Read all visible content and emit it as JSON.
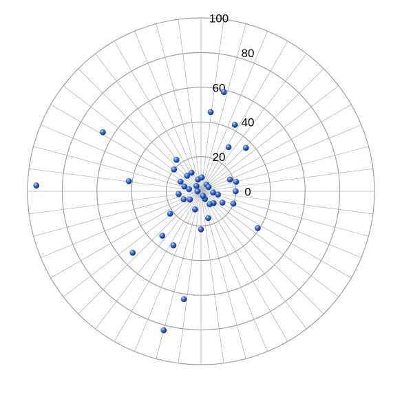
{
  "chart_data": {
    "type": "polar-scatter",
    "theta": [
      77,
      83,
      63,
      44,
      58,
      149,
      178,
      172,
      128,
      141,
      155,
      132,
      117,
      104,
      87,
      51,
      29,
      22,
      15,
      0,
      349,
      339,
      332,
      317,
      304,
      297,
      285,
      270,
      327,
      252,
      217,
      205,
      187,
      164,
      216,
      229,
      243,
      222,
      261,
      255,
      131,
      293,
      180,
      170,
      354
    ],
    "values": [
      58.7,
      46,
      43,
      36,
      30,
      66,
      95,
      42,
      23,
      20,
      13,
      12,
      12,
      7,
      8,
      5,
      5,
      18,
      21,
      20,
      10,
      20,
      14,
      10,
      9,
      5,
      16,
      22,
      39,
      11,
      8,
      11,
      13,
      10,
      22,
      34,
      35,
      53,
      63,
      83,
      4,
      3,
      2,
      7,
      7
    ],
    "color": "#1f4fb5",
    "rlim": [
      0,
      100
    ],
    "rticks": [
      0,
      20,
      40,
      60,
      80,
      100
    ],
    "grid": true
  }
}
